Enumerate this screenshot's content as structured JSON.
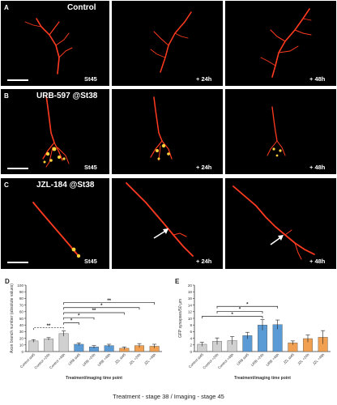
{
  "panels": {
    "a_letter": "A",
    "b_letter": "B",
    "c_letter": "C",
    "a_treatment": "Control",
    "b_treatment": "URB-597 @St38",
    "c_treatment": "JZL-184 @St38",
    "timepoints": [
      "St45",
      "+ 24h",
      "+ 48h"
    ]
  },
  "colors": {
    "axon": "#ff3b1f",
    "axon_bright": "#ffd23a",
    "control_bar": "#d0d0d0",
    "urb_bar": "#5b9bd5",
    "jzl_bar": "#f0a050",
    "arrow": "#ffffff"
  },
  "chart_data": [
    {
      "panel": "D",
      "type": "bar",
      "ylabel": "Axon branch number (absolute values)",
      "xlabel": "Treatment/imaging time point",
      "ylim": [
        0,
        100
      ],
      "yticks": [
        0,
        10,
        20,
        30,
        40,
        50,
        60,
        70,
        80,
        90,
        100
      ],
      "categories": [
        "Control st45",
        "Control +24h",
        "Control +48h",
        "URB st45",
        "URB +24h",
        "URB +48h",
        "JZL st45",
        "JZL +24h",
        "JZL +48h"
      ],
      "values": [
        16,
        19,
        27,
        11,
        7,
        9,
        5,
        9,
        8
      ],
      "errors": [
        2,
        2,
        4,
        2,
        2,
        2,
        2,
        3,
        3
      ],
      "groups": [
        "control",
        "control",
        "control",
        "urb",
        "urb",
        "urb",
        "jzl",
        "jzl",
        "jzl"
      ],
      "significance": [
        {
          "from": 0,
          "to": 2,
          "label": "**",
          "style": "dashed",
          "level": 1
        },
        {
          "from": 2,
          "to": 3,
          "label": "*",
          "level": 2
        },
        {
          "from": 2,
          "to": 4,
          "label": "*",
          "level": 3
        },
        {
          "from": 2,
          "to": 6,
          "label": "**",
          "level": 4
        },
        {
          "from": 2,
          "to": 7,
          "label": "*",
          "level": 5
        },
        {
          "from": 2,
          "to": 8,
          "label": "**",
          "level": 6
        }
      ]
    },
    {
      "panel": "E",
      "type": "bar",
      "ylabel": "GFP synapses/50 µm",
      "xlabel": "Treatment/imaging time point",
      "ylim": [
        0,
        20
      ],
      "yticks": [
        0,
        2,
        4,
        6,
        8,
        10,
        12,
        14,
        16,
        18,
        20
      ],
      "categories": [
        "Control st45",
        "Control +24h",
        "Control +48h",
        "URB st45",
        "URB +24h",
        "URB +48h",
        "JZL st45",
        "JZL +24h",
        "JZL +48h"
      ],
      "values": [
        2.2,
        3.1,
        3.3,
        4.8,
        8.0,
        8.1,
        2.6,
        3.9,
        4.3
      ],
      "errors": [
        0.6,
        1.0,
        1.2,
        1.0,
        1.6,
        1.4,
        0.6,
        1.1,
        2.0
      ],
      "groups": [
        "control",
        "control",
        "control",
        "urb",
        "urb",
        "urb",
        "jzl",
        "jzl",
        "jzl"
      ],
      "significance": [
        {
          "from": 0,
          "to": 4,
          "label": "*",
          "level": 1
        },
        {
          "from": 1,
          "to": 4,
          "label": "*",
          "level": 2
        },
        {
          "from": 1,
          "to": 5,
          "label": "*",
          "level": 3
        }
      ]
    }
  ],
  "caption": "Treatment - stage 38 / Imaging - stage 45"
}
